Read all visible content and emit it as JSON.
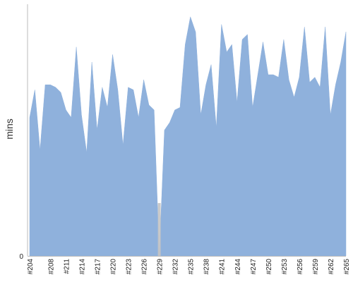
{
  "chart_data": {
    "type": "area",
    "title": "",
    "ylabel": "mins",
    "xlabel": "",
    "ylim": [
      0,
      100
    ],
    "yticks": [
      "0"
    ],
    "grid": false,
    "fill_color": "#8fb1dc",
    "gap_color": "#c4c4c4",
    "axis_color": "#bbbbbb",
    "categories": [
      "#204",
      "#205",
      "#206",
      "#207",
      "#208",
      "#209",
      "#210",
      "#211",
      "#212",
      "#213",
      "#214",
      "#215",
      "#216",
      "#217",
      "#218",
      "#219",
      "#220",
      "#221",
      "#222",
      "#223",
      "#224",
      "#225",
      "#226",
      "#227",
      "#228",
      "#229",
      "#230",
      "#231",
      "#232",
      "#233",
      "#234",
      "#235",
      "#236",
      "#237",
      "#238",
      "#239",
      "#240",
      "#241",
      "#242",
      "#243",
      "#244",
      "#245",
      "#246",
      "#247",
      "#248",
      "#249",
      "#250",
      "#251",
      "#252",
      "#253",
      "#254",
      "#255",
      "#256",
      "#257",
      "#258",
      "#259",
      "#260",
      "#261",
      "#262",
      "#263",
      "#264",
      "#265"
    ],
    "tick_labels": [
      "#204",
      "#208",
      "#211",
      "#214",
      "#217",
      "#220",
      "#223",
      "#226",
      "#229",
      "#232",
      "#235",
      "#238",
      "#241",
      "#244",
      "#247",
      "#250",
      "#253",
      "#256",
      "#259",
      "#262",
      "#265"
    ],
    "series": [
      {
        "values": [
          55,
          66,
          42,
          68,
          68,
          67,
          65,
          58,
          55,
          83,
          56,
          41,
          77,
          50,
          67,
          59,
          80,
          66,
          44,
          67,
          66,
          55,
          70,
          60,
          58,
          0,
          50,
          53,
          58,
          59,
          84,
          95,
          89,
          56,
          68,
          76,
          51,
          92,
          81,
          84,
          61,
          86,
          88,
          59,
          72,
          85,
          72,
          72,
          71,
          86,
          70,
          63,
          71,
          91,
          69,
          71,
          67,
          91,
          56,
          68,
          77,
          89
        ]
      }
    ],
    "gap_category": "#229"
  }
}
